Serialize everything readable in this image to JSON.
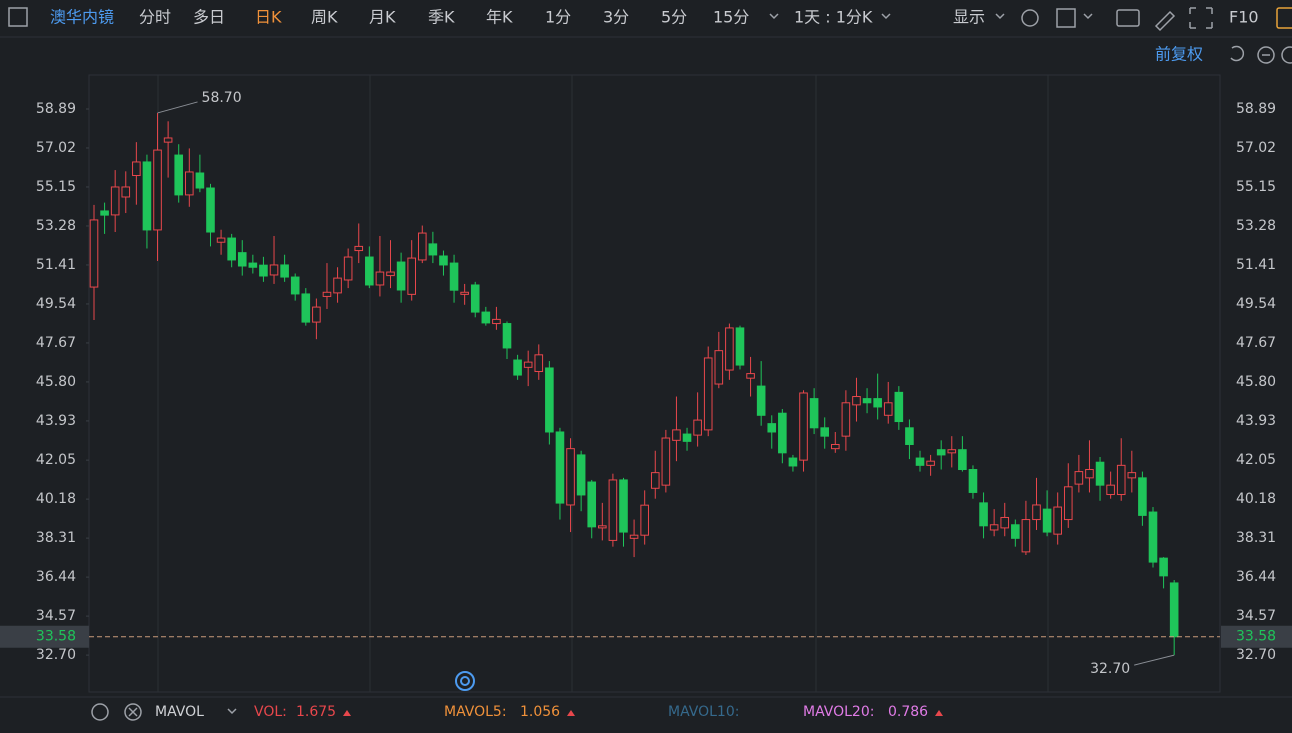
{
  "toolbar": {
    "stock": "澳华内镜",
    "periods": [
      "分时",
      "多日",
      "日K",
      "周K",
      "月K",
      "季K",
      "年K",
      "1分",
      "3分",
      "5分",
      "15分"
    ],
    "range": "1天 : 1分K",
    "display": "显示",
    "f10": "F10",
    "adjust": "前复权"
  },
  "chart_data": {
    "type": "candlestick",
    "open": [
      50.35,
      54.0,
      53.81,
      54.67,
      55.7,
      56.35,
      53.09,
      57.3,
      56.68,
      54.77,
      55.82,
      55.1,
      52.5,
      52.7,
      52.0,
      51.5,
      51.4,
      50.93,
      51.41,
      50.83,
      50.02,
      48.67,
      49.9,
      50.07,
      50.69,
      52.1,
      51.79,
      50.45,
      50.9,
      51.55,
      50.0,
      51.65,
      52.42,
      51.84,
      51.5,
      50.0,
      50.45,
      49.15,
      48.6,
      48.6,
      46.85,
      46.5,
      46.3,
      46.47,
      43.4,
      39.9,
      42.3,
      41.0,
      38.8,
      38.2,
      41.1,
      38.3,
      38.45,
      40.7,
      40.85,
      43.0,
      43.3,
      43.25,
      43.5,
      45.7,
      46.37,
      48.39,
      45.98,
      45.6,
      43.8,
      44.3,
      42.15,
      42.05,
      45.0,
      43.6,
      42.6,
      43.2,
      44.7,
      45.0,
      45.0,
      44.2,
      45.3,
      43.6,
      42.15,
      41.8,
      42.55,
      42.4,
      42.55,
      41.6,
      40.0,
      38.7,
      38.8,
      38.95,
      37.65,
      39.2,
      39.7,
      38.5,
      39.2,
      40.9,
      41.2,
      41.95,
      40.4,
      40.4,
      41.2,
      41.2,
      39.56,
      37.35,
      36.16
    ],
    "high": [
      54.29,
      54.4,
      55.96,
      55.9,
      57.3,
      56.7,
      58.7,
      58.3,
      57.2,
      57.0,
      56.7,
      55.3,
      53.1,
      52.9,
      52.6,
      51.9,
      51.8,
      52.8,
      51.9,
      51.0,
      50.3,
      49.8,
      51.5,
      51.3,
      52.2,
      53.4,
      52.3,
      52.8,
      52.6,
      52.0,
      52.6,
      53.3,
      53.0,
      52.1,
      51.9,
      50.5,
      50.6,
      49.4,
      49.4,
      48.7,
      47.1,
      47.3,
      47.6,
      46.8,
      43.6,
      43.1,
      42.5,
      41.1,
      40.0,
      41.4,
      41.2,
      39.2,
      40.6,
      42.5,
      43.5,
      45.1,
      43.6,
      45.3,
      47.5,
      48.2,
      48.6,
      48.5,
      47.0,
      46.8,
      44.2,
      44.5,
      42.3,
      45.4,
      45.5,
      44.1,
      43.4,
      45.4,
      46.0,
      45.5,
      46.2,
      45.8,
      45.6,
      44.0,
      42.5,
      42.3,
      43.0,
      43.2,
      43.2,
      41.8,
      40.5,
      39.7,
      40.0,
      39.2,
      40.1,
      41.2,
      40.6,
      40.5,
      41.9,
      42.3,
      43.0,
      42.2,
      41.5,
      43.1,
      42.5,
      41.5,
      39.8,
      37.4,
      36.3
    ],
    "low": [
      48.77,
      52.9,
      52.99,
      53.9,
      54.3,
      52.2,
      51.6,
      55.6,
      54.4,
      54.2,
      54.9,
      52.3,
      51.9,
      51.3,
      50.9,
      51.0,
      50.6,
      50.5,
      50.6,
      49.7,
      48.5,
      47.85,
      49.3,
      49.6,
      50.3,
      51.5,
      50.3,
      49.9,
      50.3,
      49.6,
      49.7,
      51.5,
      51.5,
      50.9,
      49.6,
      49.5,
      48.9,
      48.5,
      48.3,
      46.9,
      45.9,
      45.6,
      45.9,
      42.8,
      39.2,
      38.6,
      39.6,
      38.3,
      38.2,
      37.9,
      37.9,
      37.4,
      38.0,
      40.2,
      40.5,
      42.0,
      42.5,
      42.7,
      43.2,
      45.5,
      45.9,
      46.4,
      45.1,
      43.7,
      42.6,
      41.9,
      41.5,
      41.5,
      43.3,
      42.6,
      42.4,
      42.5,
      43.9,
      44.3,
      44.0,
      43.8,
      43.5,
      42.1,
      41.5,
      41.3,
      41.6,
      41.7,
      41.5,
      40.2,
      38.3,
      38.4,
      38.4,
      37.9,
      37.5,
      38.7,
      38.4,
      38.0,
      38.8,
      40.5,
      40.5,
      40.1,
      40.2,
      40.1,
      40.5,
      38.9,
      36.9,
      35.9,
      32.7
    ],
    "close": [
      53.57,
      53.8,
      55.15,
      55.15,
      56.35,
      53.09,
      56.92,
      57.5,
      54.77,
      55.87,
      55.1,
      52.99,
      52.7,
      51.65,
      51.36,
      51.3,
      50.88,
      51.41,
      50.83,
      50.02,
      48.67,
      49.39,
      50.1,
      50.78,
      51.79,
      52.3,
      50.45,
      51.07,
      51.07,
      50.21,
      51.74,
      52.94,
      51.89,
      51.41,
      50.2,
      50.1,
      49.15,
      48.63,
      48.8,
      47.43,
      46.13,
      46.75,
      47.1,
      43.4,
      39.99,
      42.6,
      40.38,
      38.85,
      38.9,
      41.1,
      38.6,
      38.45,
      39.89,
      41.45,
      43.11,
      43.5,
      42.95,
      43.97,
      46.95,
      47.3,
      48.39,
      46.61,
      46.2,
      44.2,
      43.4,
      42.4,
      41.77,
      45.27,
      43.6,
      43.2,
      42.8,
      44.8,
      45.1,
      44.8,
      44.6,
      44.8,
      43.9,
      42.8,
      41.8,
      42.0,
      42.3,
      42.55,
      41.6,
      40.5,
      38.9,
      38.95,
      39.3,
      38.3,
      39.2,
      39.9,
      38.6,
      39.8,
      40.77,
      41.5,
      41.6,
      40.85,
      40.85,
      41.8,
      41.45,
      39.4,
      37.16,
      36.5,
      33.58
    ],
    "up_color": "#e8474c",
    "down_color": "#1fc55a",
    "ylim": [
      30.93,
      60.52
    ],
    "yticks": [
      58.89,
      57.02,
      55.15,
      53.28,
      51.41,
      49.54,
      47.67,
      {
        "value": 45.8,
        "label": "45.80"
      },
      43.93,
      42.05,
      40.18,
      38.31,
      36.44,
      34.57,
      {
        "value": 32.7,
        "label": "32.70"
      }
    ],
    "last_price": 33.58,
    "annotations": [
      {
        "value": 58.7,
        "label": "58.70"
      },
      {
        "value": 32.7,
        "label": "32.70"
      }
    ]
  },
  "indicator": {
    "name": "MAVOL",
    "vol_label": "VOL:",
    "vol": 1.675,
    "ma5_label": "MAVOL5:",
    "ma5": 1.056,
    "ma10_label": "MAVOL10:",
    "ma20_label": "MAVOL20:",
    "ma20": 0.786
  }
}
